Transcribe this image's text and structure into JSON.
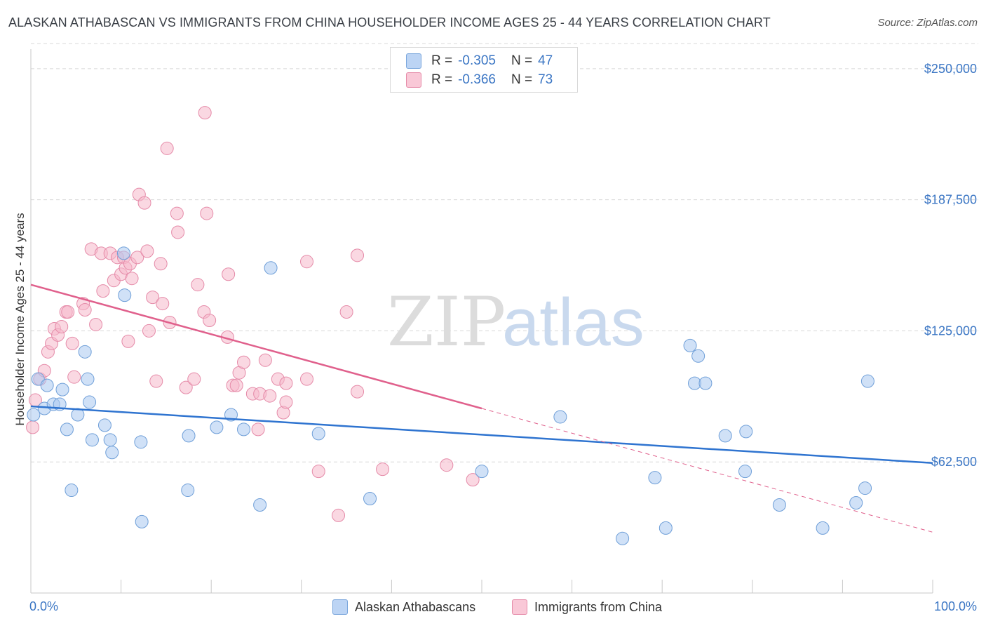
{
  "title": "ALASKAN ATHABASCAN VS IMMIGRANTS FROM CHINA HOUSEHOLDER INCOME AGES 25 - 44 YEARS CORRELATION CHART",
  "source": "Source: ZipAtlas.com",
  "watermark": {
    "zip": "ZIP",
    "atlas": "atlas"
  },
  "legend": {
    "r_label": "R =",
    "n_label": "N =",
    "rows": [
      {
        "name": "Alaskan Athabascans",
        "r": "-0.305",
        "n": "47"
      },
      {
        "name": "Immigrants from China",
        "r": "-0.366",
        "n": "73"
      }
    ]
  },
  "colors": {
    "blue_fill": "#a9c8f0",
    "blue_stroke": "#6f9fd8",
    "blue_line": "#2f74d0",
    "pink_fill": "#f6b8cb",
    "pink_stroke": "#e58aa8",
    "pink_line": "#e0608c",
    "tick_text": "#3b76c4",
    "grid": "#d8d8d8"
  },
  "chart_data": {
    "type": "scatter",
    "title": "ALASKAN ATHABASCAN VS IMMIGRANTS FROM CHINA HOUSEHOLDER INCOME AGES 25 - 44 YEARS CORRELATION CHART",
    "xlabel": "",
    "ylabel": "Householder Income Ages 25 - 44 years",
    "xlim": [
      0,
      100
    ],
    "ylim": [
      0,
      262000
    ],
    "x_tick_labels": [
      "0.0%",
      "100.0%"
    ],
    "y_ticks": [
      {
        "value": 62500,
        "label": "$62,500"
      },
      {
        "value": 125000,
        "label": "$125,000"
      },
      {
        "value": 187500,
        "label": "$187,500"
      },
      {
        "value": 250000,
        "label": "$250,000"
      }
    ],
    "grid": true,
    "legend_position": "top-center",
    "series": [
      {
        "name": "Alaskan Athabascans",
        "color": "blue",
        "trend": {
          "x": [
            0,
            100
          ],
          "y": [
            89000,
            62000
          ],
          "dashed_after": null
        },
        "points": [
          [
            0.3,
            85000
          ],
          [
            0.8,
            102000
          ],
          [
            1.5,
            88000
          ],
          [
            1.8,
            99000
          ],
          [
            2.5,
            90000
          ],
          [
            3.2,
            90000
          ],
          [
            3.5,
            97000
          ],
          [
            4.0,
            78000
          ],
          [
            4.5,
            49000
          ],
          [
            5.2,
            85000
          ],
          [
            6.0,
            115000
          ],
          [
            6.5,
            91000
          ],
          [
            6.3,
            102000
          ],
          [
            6.8,
            73000
          ],
          [
            8.2,
            80000
          ],
          [
            8.8,
            73000
          ],
          [
            9.0,
            67000
          ],
          [
            10.3,
            162000
          ],
          [
            10.4,
            142000
          ],
          [
            12.2,
            72000
          ],
          [
            12.3,
            34000
          ],
          [
            17.4,
            49000
          ],
          [
            17.5,
            75000
          ],
          [
            20.6,
            79000
          ],
          [
            22.2,
            85000
          ],
          [
            23.6,
            78000
          ],
          [
            25.4,
            42000
          ],
          [
            26.6,
            155000
          ],
          [
            31.9,
            76000
          ],
          [
            37.6,
            45000
          ],
          [
            50.0,
            58000
          ],
          [
            58.7,
            84000
          ],
          [
            65.6,
            26000
          ],
          [
            69.2,
            55000
          ],
          [
            70.4,
            31000
          ],
          [
            73.1,
            118000
          ],
          [
            73.6,
            100000
          ],
          [
            74.0,
            113000
          ],
          [
            74.8,
            100000
          ],
          [
            77.0,
            75000
          ],
          [
            79.2,
            58000
          ],
          [
            79.3,
            77000
          ],
          [
            83.0,
            42000
          ],
          [
            87.8,
            31000
          ],
          [
            91.5,
            43000
          ],
          [
            92.5,
            50000
          ],
          [
            92.8,
            101000
          ]
        ]
      },
      {
        "name": "Immigrants from China",
        "color": "pink",
        "trend": {
          "x": [
            0,
            100
          ],
          "y": [
            147000,
            29000
          ],
          "dashed_after": 50
        },
        "points": [
          [
            0.2,
            79000
          ],
          [
            0.5,
            92000
          ],
          [
            1.0,
            102000
          ],
          [
            1.5,
            106000
          ],
          [
            1.9,
            115000
          ],
          [
            2.3,
            119000
          ],
          [
            2.6,
            126000
          ],
          [
            3.0,
            123000
          ],
          [
            3.4,
            127000
          ],
          [
            3.9,
            134000
          ],
          [
            4.1,
            134000
          ],
          [
            4.6,
            119000
          ],
          [
            4.8,
            103000
          ],
          [
            5.8,
            138000
          ],
          [
            6.0,
            135000
          ],
          [
            6.7,
            164000
          ],
          [
            7.2,
            128000
          ],
          [
            7.8,
            162000
          ],
          [
            8.0,
            144000
          ],
          [
            8.8,
            162000
          ],
          [
            9.2,
            149000
          ],
          [
            9.6,
            160000
          ],
          [
            10.0,
            152000
          ],
          [
            10.3,
            160000
          ],
          [
            10.5,
            155000
          ],
          [
            10.8,
            120000
          ],
          [
            11.0,
            157000
          ],
          [
            11.2,
            150000
          ],
          [
            11.8,
            160000
          ],
          [
            12.0,
            190000
          ],
          [
            12.6,
            186000
          ],
          [
            12.9,
            163000
          ],
          [
            13.1,
            125000
          ],
          [
            13.5,
            141000
          ],
          [
            13.9,
            101000
          ],
          [
            14.4,
            157000
          ],
          [
            14.6,
            138000
          ],
          [
            15.1,
            212000
          ],
          [
            15.4,
            129000
          ],
          [
            16.2,
            181000
          ],
          [
            16.3,
            172000
          ],
          [
            17.2,
            98000
          ],
          [
            18.1,
            102000
          ],
          [
            18.5,
            147000
          ],
          [
            19.2,
            134000
          ],
          [
            19.3,
            229000
          ],
          [
            19.5,
            181000
          ],
          [
            19.8,
            130000
          ],
          [
            21.8,
            122000
          ],
          [
            21.9,
            152000
          ],
          [
            22.4,
            99000
          ],
          [
            22.8,
            99000
          ],
          [
            23.1,
            105000
          ],
          [
            23.6,
            110000
          ],
          [
            24.6,
            95000
          ],
          [
            25.2,
            78000
          ],
          [
            25.4,
            95000
          ],
          [
            26.0,
            111000
          ],
          [
            26.5,
            94000
          ],
          [
            27.4,
            102000
          ],
          [
            28.0,
            86000
          ],
          [
            28.3,
            91000
          ],
          [
            28.3,
            100000
          ],
          [
            30.6,
            102000
          ],
          [
            30.6,
            158000
          ],
          [
            31.9,
            58000
          ],
          [
            34.1,
            37000
          ],
          [
            35.0,
            134000
          ],
          [
            36.2,
            96000
          ],
          [
            36.2,
            161000
          ],
          [
            39.0,
            59000
          ],
          [
            46.1,
            61000
          ],
          [
            49.0,
            54000
          ]
        ]
      }
    ]
  }
}
